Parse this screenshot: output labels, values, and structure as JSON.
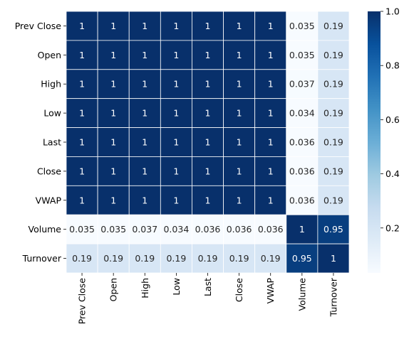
{
  "chart_data": {
    "type": "heatmap",
    "title": "",
    "xlabel": "",
    "ylabel": "",
    "rows": [
      "Prev Close",
      "Open",
      "High",
      "Low",
      "Last",
      "Close",
      "VWAP",
      "Volume",
      "Turnover"
    ],
    "columns": [
      "Prev Close",
      "Open",
      "High",
      "Low",
      "Last",
      "Close",
      "VWAP",
      "Volume",
      "Turnover"
    ],
    "values": [
      [
        1,
        1,
        1,
        1,
        1,
        1,
        1,
        0.035,
        0.19
      ],
      [
        1,
        1,
        1,
        1,
        1,
        1,
        1,
        0.035,
        0.19
      ],
      [
        1,
        1,
        1,
        1,
        1,
        1,
        1,
        0.037,
        0.19
      ],
      [
        1,
        1,
        1,
        1,
        1,
        1,
        1,
        0.034,
        0.19
      ],
      [
        1,
        1,
        1,
        1,
        1,
        1,
        1,
        0.036,
        0.19
      ],
      [
        1,
        1,
        1,
        1,
        1,
        1,
        1,
        0.036,
        0.19
      ],
      [
        1,
        1,
        1,
        1,
        1,
        1,
        1,
        0.036,
        0.19
      ],
      [
        0.035,
        0.035,
        0.037,
        0.034,
        0.036,
        0.036,
        0.036,
        1,
        0.95
      ],
      [
        0.19,
        0.19,
        0.19,
        0.19,
        0.19,
        0.19,
        0.19,
        0.95,
        1
      ]
    ],
    "annotations": [
      [
        "1",
        "1",
        "1",
        "1",
        "1",
        "1",
        "1",
        "0.035",
        "0.19"
      ],
      [
        "1",
        "1",
        "1",
        "1",
        "1",
        "1",
        "1",
        "0.035",
        "0.19"
      ],
      [
        "1",
        "1",
        "1",
        "1",
        "1",
        "1",
        "1",
        "0.037",
        "0.19"
      ],
      [
        "1",
        "1",
        "1",
        "1",
        "1",
        "1",
        "1",
        "0.034",
        "0.19"
      ],
      [
        "1",
        "1",
        "1",
        "1",
        "1",
        "1",
        "1",
        "0.036",
        "0.19"
      ],
      [
        "1",
        "1",
        "1",
        "1",
        "1",
        "1",
        "1",
        "0.036",
        "0.19"
      ],
      [
        "1",
        "1",
        "1",
        "1",
        "1",
        "1",
        "1",
        "0.036",
        "0.19"
      ],
      [
        "0.035",
        "0.035",
        "0.037",
        "0.034",
        "0.036",
        "0.036",
        "0.036",
        "1",
        "0.95"
      ],
      [
        "0.19",
        "0.19",
        "0.19",
        "0.19",
        "0.19",
        "0.19",
        "0.19",
        "0.95",
        "1"
      ]
    ],
    "colormap": "Blues",
    "colorbar": {
      "range": [
        0.034,
        1.0
      ],
      "ticks": [
        0.2,
        0.4,
        0.6,
        0.8,
        1.0
      ],
      "tick_labels": [
        "0.2",
        "0.4",
        "0.6",
        "0.8",
        "1.0"
      ]
    },
    "cell_border_color": "#ffffff"
  }
}
